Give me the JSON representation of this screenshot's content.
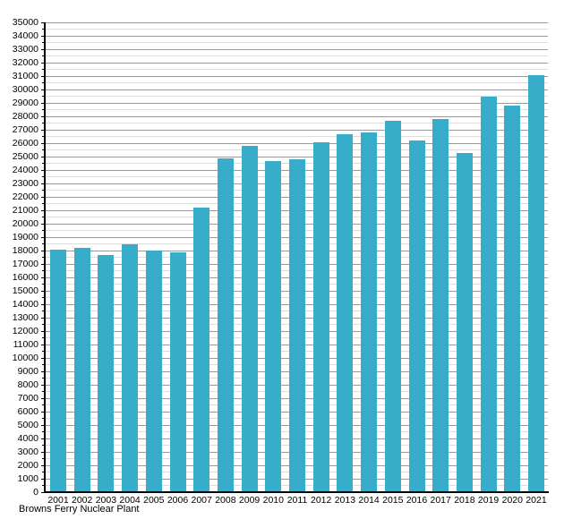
{
  "chart_data": {
    "type": "bar",
    "title": "",
    "xlabel": "Browns Ferry Nuclear Plant",
    "ylabel": "",
    "categories": [
      "2001",
      "2002",
      "2003",
      "2004",
      "2005",
      "2006",
      "2007",
      "2008",
      "2009",
      "2010",
      "2011",
      "2012",
      "2013",
      "2014",
      "2015",
      "2016",
      "2017",
      "2018",
      "2019",
      "2020",
      "2021"
    ],
    "values": [
      18100,
      18200,
      17700,
      18500,
      18000,
      17900,
      21200,
      24900,
      25800,
      24700,
      24800,
      26100,
      26700,
      26800,
      27700,
      26200,
      27800,
      25300,
      29500,
      28800,
      31100
    ],
    "ylim": [
      0,
      35000
    ],
    "y_major_step": 1000,
    "y_minor_step": 500,
    "grid": true,
    "legend": "none",
    "bar_color": "#37adc9",
    "major_grid_color": "#999999",
    "minor_grid_color": "#dddddd",
    "axis_color": "#000000",
    "text_color": "#000000"
  }
}
